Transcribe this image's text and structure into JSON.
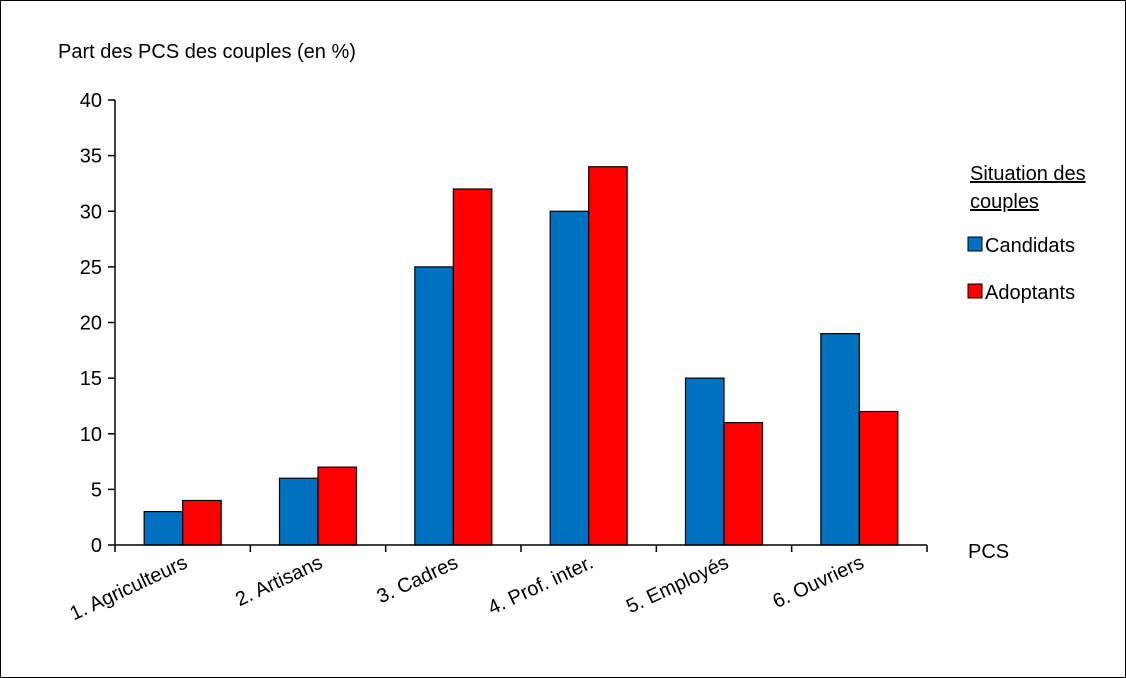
{
  "chart_data": {
    "type": "bar",
    "ylabel": "Part des PCS des couples (en %)",
    "xlabel": "PCS",
    "ylim": [
      0,
      40
    ],
    "yticks": [
      0,
      5,
      10,
      15,
      20,
      25,
      30,
      35,
      40
    ],
    "categories": [
      "1. Agriculteurs",
      "2. Artisans",
      "3. Cadres",
      "4. Prof. inter.",
      "5. Employés",
      "6. Ouvriers"
    ],
    "series": [
      {
        "name": "Candidats",
        "color": "#0070C0",
        "values": [
          3,
          6,
          25,
          30,
          15,
          19
        ]
      },
      {
        "name": "Adoptants",
        "color": "#FF0000",
        "values": [
          4,
          7,
          32,
          34,
          11,
          12
        ]
      }
    ],
    "legend": {
      "title_lines": [
        "Situation des",
        "couples"
      ],
      "position": "right"
    },
    "grid": false
  }
}
